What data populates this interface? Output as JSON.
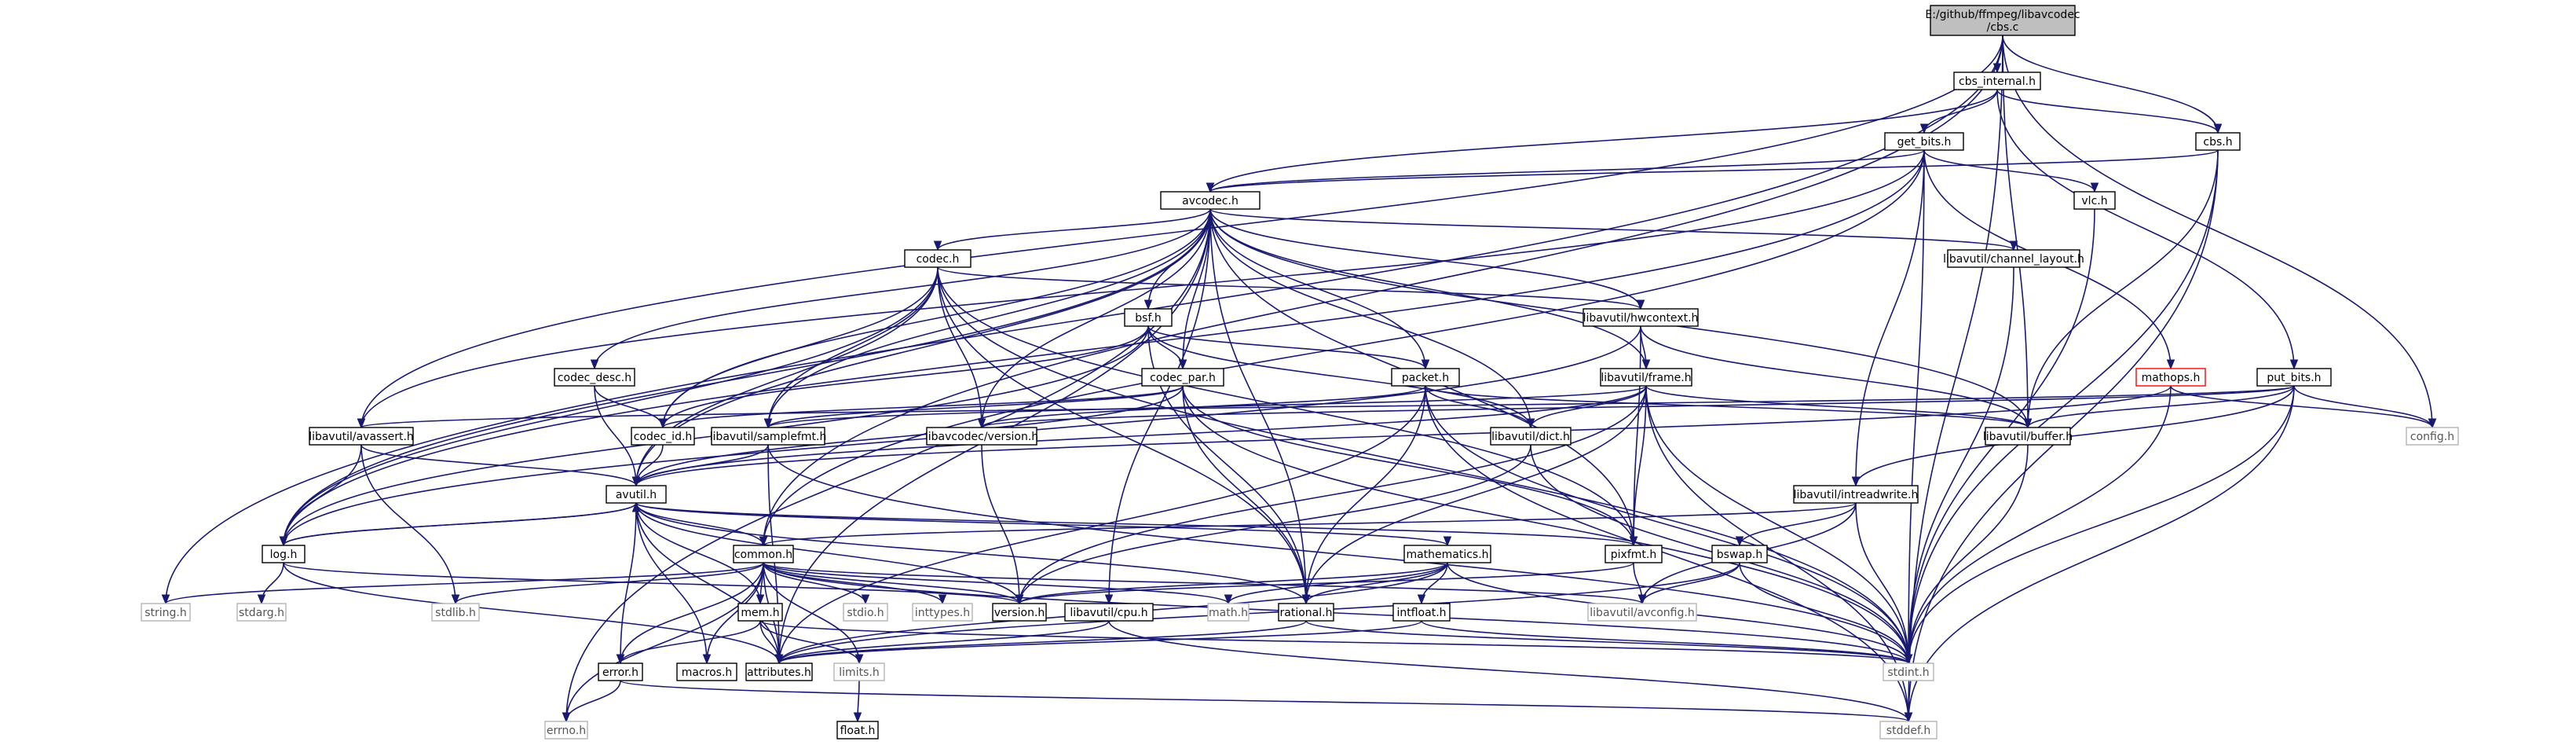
{
  "diagram": {
    "type": "include-dependency-graph",
    "root": "E:/github/ffmpeg/libavcodec/cbs.c",
    "nodes": [
      {
        "id": "root",
        "lines": [
          "E:/github/ffmpeg/libavcodec",
          "/cbs.c"
        ],
        "style": "root"
      },
      {
        "id": "cbs_internal",
        "lines": [
          "cbs_internal.h"
        ],
        "style": "normal"
      },
      {
        "id": "cbs",
        "lines": [
          "cbs.h"
        ],
        "style": "normal"
      },
      {
        "id": "get_bits",
        "lines": [
          "get_bits.h"
        ],
        "style": "normal"
      },
      {
        "id": "vlc",
        "lines": [
          "vlc.h"
        ],
        "style": "normal"
      },
      {
        "id": "avcodec",
        "lines": [
          "avcodec.h"
        ],
        "style": "normal"
      },
      {
        "id": "channel_layout",
        "lines": [
          "libavutil/channel_layout.h"
        ],
        "style": "normal"
      },
      {
        "id": "codec",
        "lines": [
          "codec.h"
        ],
        "style": "normal"
      },
      {
        "id": "hwcontext",
        "lines": [
          "libavutil/hwcontext.h"
        ],
        "style": "normal"
      },
      {
        "id": "bsf",
        "lines": [
          "bsf.h"
        ],
        "style": "normal"
      },
      {
        "id": "mathops",
        "lines": [
          "mathops.h"
        ],
        "style": "red"
      },
      {
        "id": "put_bits",
        "lines": [
          "put_bits.h"
        ],
        "style": "normal"
      },
      {
        "id": "codec_desc",
        "lines": [
          "codec_desc.h"
        ],
        "style": "normal"
      },
      {
        "id": "codec_par",
        "lines": [
          "codec_par.h"
        ],
        "style": "normal"
      },
      {
        "id": "packet",
        "lines": [
          "packet.h"
        ],
        "style": "normal"
      },
      {
        "id": "frame",
        "lines": [
          "libavutil/frame.h"
        ],
        "style": "normal"
      },
      {
        "id": "avassert",
        "lines": [
          "libavutil/avassert.h"
        ],
        "style": "normal"
      },
      {
        "id": "codec_id",
        "lines": [
          "codec_id.h"
        ],
        "style": "normal"
      },
      {
        "id": "samplefmt",
        "lines": [
          "libavutil/samplefmt.h"
        ],
        "style": "normal"
      },
      {
        "id": "lavc_version",
        "lines": [
          "libavcodec/version.h"
        ],
        "style": "normal"
      },
      {
        "id": "dict",
        "lines": [
          "libavutil/dict.h"
        ],
        "style": "normal"
      },
      {
        "id": "buffer",
        "lines": [
          "libavutil/buffer.h"
        ],
        "style": "normal"
      },
      {
        "id": "config",
        "lines": [
          "config.h"
        ],
        "style": "system"
      },
      {
        "id": "avutil",
        "lines": [
          "avutil.h"
        ],
        "style": "normal"
      },
      {
        "id": "intreadwrite",
        "lines": [
          "libavutil/intreadwrite.h"
        ],
        "style": "normal"
      },
      {
        "id": "log",
        "lines": [
          "log.h"
        ],
        "style": "normal"
      },
      {
        "id": "common",
        "lines": [
          "common.h"
        ],
        "style": "normal"
      },
      {
        "id": "mathematics",
        "lines": [
          "mathematics.h"
        ],
        "style": "normal"
      },
      {
        "id": "pixfmt",
        "lines": [
          "pixfmt.h"
        ],
        "style": "normal"
      },
      {
        "id": "bswap",
        "lines": [
          "bswap.h"
        ],
        "style": "normal"
      },
      {
        "id": "string",
        "lines": [
          "string.h"
        ],
        "style": "system"
      },
      {
        "id": "stdarg",
        "lines": [
          "stdarg.h"
        ],
        "style": "system"
      },
      {
        "id": "stdlib",
        "lines": [
          "stdlib.h"
        ],
        "style": "system"
      },
      {
        "id": "stdio",
        "lines": [
          "stdio.h"
        ],
        "style": "system"
      },
      {
        "id": "inttypes",
        "lines": [
          "inttypes.h"
        ],
        "style": "system"
      },
      {
        "id": "version",
        "lines": [
          "version.h"
        ],
        "style": "normal"
      },
      {
        "id": "cpu",
        "lines": [
          "libavutil/cpu.h"
        ],
        "style": "normal"
      },
      {
        "id": "math",
        "lines": [
          "math.h"
        ],
        "style": "system"
      },
      {
        "id": "rational",
        "lines": [
          "rational.h"
        ],
        "style": "normal"
      },
      {
        "id": "intfloat",
        "lines": [
          "intfloat.h"
        ],
        "style": "normal"
      },
      {
        "id": "avconfig",
        "lines": [
          "libavutil/avconfig.h"
        ],
        "style": "system"
      },
      {
        "id": "mem",
        "lines": [
          "mem.h"
        ],
        "style": "normal"
      },
      {
        "id": "error",
        "lines": [
          "error.h"
        ],
        "style": "normal"
      },
      {
        "id": "macros",
        "lines": [
          "macros.h"
        ],
        "style": "normal"
      },
      {
        "id": "attributes",
        "lines": [
          "attributes.h"
        ],
        "style": "normal"
      },
      {
        "id": "limits",
        "lines": [
          "limits.h"
        ],
        "style": "system"
      },
      {
        "id": "stdint",
        "lines": [
          "stdint.h"
        ],
        "style": "system"
      },
      {
        "id": "float",
        "lines": [
          "float.h"
        ],
        "style": "normal"
      },
      {
        "id": "errno",
        "lines": [
          "errno.h"
        ],
        "style": "system"
      },
      {
        "id": "stddef",
        "lines": [
          "stddef.h"
        ],
        "style": "system"
      }
    ],
    "edges": [
      [
        "root",
        "cbs_internal"
      ],
      [
        "root",
        "cbs"
      ],
      [
        "root",
        "config"
      ],
      [
        "root",
        "avassert"
      ],
      [
        "root",
        "buffer"
      ],
      [
        "root",
        "common"
      ],
      [
        "root",
        "string"
      ],
      [
        "root",
        "stddef"
      ],
      [
        "cbs_internal",
        "cbs"
      ],
      [
        "cbs_internal",
        "get_bits"
      ],
      [
        "cbs_internal",
        "avcodec"
      ],
      [
        "cbs_internal",
        "put_bits"
      ],
      [
        "cbs",
        "avcodec"
      ],
      [
        "cbs",
        "buffer"
      ],
      [
        "cbs",
        "stdint"
      ],
      [
        "cbs",
        "stddef"
      ],
      [
        "get_bits",
        "avcodec"
      ],
      [
        "get_bits",
        "vlc"
      ],
      [
        "get_bits",
        "mathops"
      ],
      [
        "get_bits",
        "intreadwrite"
      ],
      [
        "get_bits",
        "avassert"
      ],
      [
        "get_bits",
        "log"
      ],
      [
        "get_bits",
        "common"
      ],
      [
        "get_bits",
        "stdint"
      ],
      [
        "vlc",
        "stdint"
      ],
      [
        "avcodec",
        "channel_layout"
      ],
      [
        "avcodec",
        "codec"
      ],
      [
        "avcodec",
        "hwcontext"
      ],
      [
        "avcodec",
        "bsf"
      ],
      [
        "avcodec",
        "codec_desc"
      ],
      [
        "avcodec",
        "codec_par"
      ],
      [
        "avcodec",
        "packet"
      ],
      [
        "avcodec",
        "frame"
      ],
      [
        "avcodec",
        "samplefmt"
      ],
      [
        "avcodec",
        "lavc_version"
      ],
      [
        "avcodec",
        "dict"
      ],
      [
        "avcodec",
        "buffer"
      ],
      [
        "avcodec",
        "codec_id"
      ],
      [
        "avcodec",
        "avutil"
      ],
      [
        "avcodec",
        "log"
      ],
      [
        "avcodec",
        "pixfmt"
      ],
      [
        "avcodec",
        "cpu"
      ],
      [
        "avcodec",
        "rational"
      ],
      [
        "avcodec",
        "attributes"
      ],
      [
        "avcodec",
        "errno"
      ],
      [
        "channel_layout",
        "stdint"
      ],
      [
        "codec",
        "hwcontext"
      ],
      [
        "codec",
        "codec_id"
      ],
      [
        "codec",
        "samplefmt"
      ],
      [
        "codec",
        "lavc_version"
      ],
      [
        "codec",
        "avutil"
      ],
      [
        "codec",
        "log"
      ],
      [
        "codec",
        "pixfmt"
      ],
      [
        "codec",
        "rational"
      ],
      [
        "codec",
        "stdint"
      ],
      [
        "hwcontext",
        "frame"
      ],
      [
        "hwcontext",
        "buffer"
      ],
      [
        "hwcontext",
        "pixfmt"
      ],
      [
        "hwcontext",
        "log"
      ],
      [
        "bsf",
        "codec_par"
      ],
      [
        "bsf",
        "packet"
      ],
      [
        "bsf",
        "codec_id"
      ],
      [
        "bsf",
        "dict"
      ],
      [
        "bsf",
        "log"
      ],
      [
        "bsf",
        "rational"
      ],
      [
        "mathops",
        "avutil"
      ],
      [
        "mathops",
        "stdint"
      ],
      [
        "mathops",
        "config"
      ],
      [
        "put_bits",
        "config"
      ],
      [
        "put_bits",
        "buffer"
      ],
      [
        "put_bits",
        "lavc_version"
      ],
      [
        "put_bits",
        "avassert"
      ],
      [
        "put_bits",
        "intreadwrite"
      ],
      [
        "put_bits",
        "stdint"
      ],
      [
        "put_bits",
        "stddef"
      ],
      [
        "codec_desc",
        "codec_id"
      ],
      [
        "codec_desc",
        "avutil"
      ],
      [
        "codec_par",
        "codec_id"
      ],
      [
        "codec_par",
        "samplefmt"
      ],
      [
        "codec_par",
        "avutil"
      ],
      [
        "codec_par",
        "pixfmt"
      ],
      [
        "codec_par",
        "rational"
      ],
      [
        "codec_par",
        "stdint"
      ],
      [
        "packet",
        "buffer"
      ],
      [
        "packet",
        "dict"
      ],
      [
        "packet",
        "lavc_version"
      ],
      [
        "packet",
        "rational"
      ],
      [
        "packet",
        "attributes"
      ],
      [
        "packet",
        "stdint"
      ],
      [
        "packet",
        "stddef"
      ],
      [
        "frame",
        "buffer"
      ],
      [
        "frame",
        "dict"
      ],
      [
        "frame",
        "samplefmt"
      ],
      [
        "frame",
        "avutil"
      ],
      [
        "frame",
        "pixfmt"
      ],
      [
        "frame",
        "rational"
      ],
      [
        "frame",
        "version"
      ],
      [
        "frame",
        "stdint"
      ],
      [
        "frame",
        "stddef"
      ],
      [
        "avassert",
        "avutil"
      ],
      [
        "avassert",
        "log"
      ],
      [
        "avassert",
        "stdlib"
      ],
      [
        "codec_id",
        "avutil"
      ],
      [
        "samplefmt",
        "avutil"
      ],
      [
        "samplefmt",
        "attributes"
      ],
      [
        "samplefmt",
        "stdint"
      ],
      [
        "lavc_version",
        "version"
      ],
      [
        "dict",
        "stdint"
      ],
      [
        "dict",
        "version"
      ],
      [
        "buffer",
        "stdint"
      ],
      [
        "avutil",
        "common"
      ],
      [
        "avutil",
        "error"
      ],
      [
        "avutil",
        "version"
      ],
      [
        "avutil",
        "macros"
      ],
      [
        "avutil",
        "mathematics"
      ],
      [
        "avutil",
        "rational"
      ],
      [
        "avutil",
        "log"
      ],
      [
        "avutil",
        "pixfmt"
      ],
      [
        "avutil",
        "attributes"
      ],
      [
        "intreadwrite",
        "avconfig"
      ],
      [
        "intreadwrite",
        "bswap"
      ],
      [
        "intreadwrite",
        "common"
      ],
      [
        "intreadwrite",
        "stdint"
      ],
      [
        "log",
        "avutil"
      ],
      [
        "log",
        "attributes"
      ],
      [
        "log",
        "version"
      ],
      [
        "log",
        "stdarg"
      ],
      [
        "common",
        "string"
      ],
      [
        "common",
        "stdlib"
      ],
      [
        "common",
        "stdio"
      ],
      [
        "common",
        "inttypes"
      ],
      [
        "common",
        "version"
      ],
      [
        "common",
        "math"
      ],
      [
        "common",
        "avconfig"
      ],
      [
        "common",
        "mem"
      ],
      [
        "common",
        "error"
      ],
      [
        "common",
        "macros"
      ],
      [
        "common",
        "attributes"
      ],
      [
        "common",
        "limits"
      ],
      [
        "common",
        "errno"
      ],
      [
        "common",
        "stdint"
      ],
      [
        "mathematics",
        "math"
      ],
      [
        "mathematics",
        "rational"
      ],
      [
        "mathematics",
        "intfloat"
      ],
      [
        "mathematics",
        "attributes"
      ],
      [
        "mathematics",
        "version"
      ],
      [
        "mathematics",
        "stdint"
      ],
      [
        "pixfmt",
        "version"
      ],
      [
        "pixfmt",
        "avconfig"
      ],
      [
        "bswap",
        "avconfig"
      ],
      [
        "bswap",
        "attributes"
      ],
      [
        "bswap",
        "stdint"
      ],
      [
        "cpu",
        "attributes"
      ],
      [
        "cpu",
        "stddef"
      ],
      [
        "rational",
        "attributes"
      ],
      [
        "rational",
        "stdint"
      ],
      [
        "intfloat",
        "attributes"
      ],
      [
        "intfloat",
        "stdint"
      ],
      [
        "mem",
        "attributes"
      ],
      [
        "mem",
        "error"
      ],
      [
        "mem",
        "limits"
      ],
      [
        "mem",
        "avutil"
      ],
      [
        "mem",
        "stdint"
      ],
      [
        "error",
        "errno"
      ],
      [
        "error",
        "stddef"
      ],
      [
        "limits",
        "float"
      ]
    ]
  }
}
